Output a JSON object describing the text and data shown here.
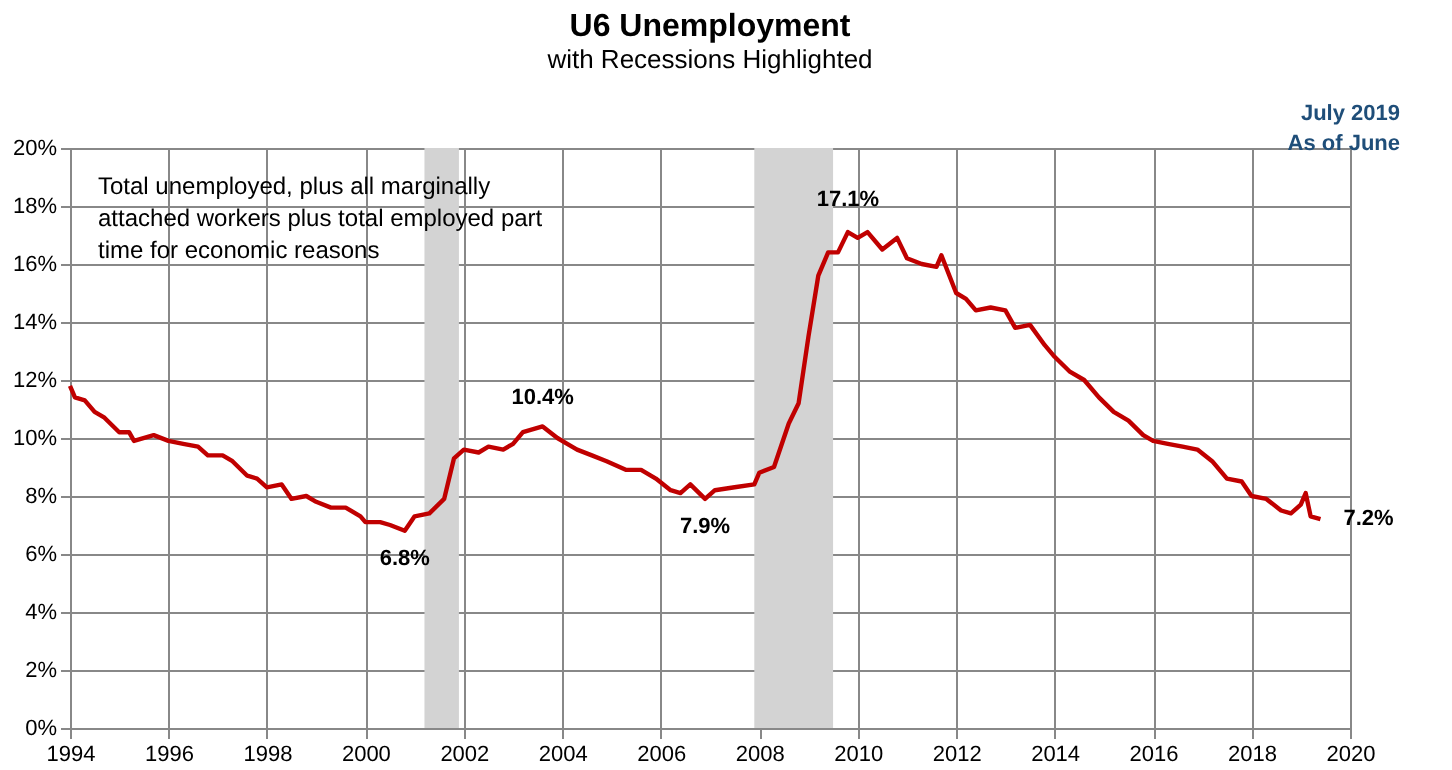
{
  "chart_data": {
    "type": "line",
    "title": "U6 Unemployment",
    "subtitle": "with Recessions Highlighted",
    "x": [
      1994.0,
      1994.1,
      1994.3,
      1994.5,
      1994.7,
      1995.0,
      1995.2,
      1995.3,
      1995.7,
      1996.0,
      1996.3,
      1996.6,
      1996.8,
      1997.1,
      1997.3,
      1997.6,
      1997.8,
      1998.0,
      1998.3,
      1998.5,
      1998.8,
      1999.0,
      1999.3,
      1999.6,
      1999.9,
      2000.0,
      2000.3,
      2000.5,
      2000.8,
      2001.0,
      2001.3,
      2001.6,
      2001.8,
      2002.0,
      2002.3,
      2002.5,
      2002.8,
      2003.0,
      2003.2,
      2003.6,
      2003.9,
      2004.1,
      2004.3,
      2004.6,
      2004.9,
      2005.3,
      2005.6,
      2005.9,
      2006.2,
      2006.4,
      2006.6,
      2006.9,
      2007.1,
      2007.5,
      2007.9,
      2008.0,
      2008.3,
      2008.6,
      2008.8,
      2009.0,
      2009.2,
      2009.4,
      2009.6,
      2009.8,
      2010.0,
      2010.2,
      2010.5,
      2010.8,
      2011.0,
      2011.3,
      2011.6,
      2011.7,
      2012.0,
      2012.2,
      2012.4,
      2012.7,
      2013.0,
      2013.2,
      2013.5,
      2013.8,
      2014.0,
      2014.3,
      2014.6,
      2014.9,
      2015.2,
      2015.5,
      2015.8,
      2016.0,
      2016.3,
      2016.6,
      2016.9,
      2017.2,
      2017.5,
      2017.8,
      2018.0,
      2018.3,
      2018.6,
      2018.8,
      2019.0,
      2019.1,
      2019.2,
      2019.4
    ],
    "series": [
      {
        "color": "#c00000",
        "values": [
          11.8,
          11.4,
          11.3,
          10.9,
          10.7,
          10.2,
          10.2,
          9.9,
          10.1,
          9.9,
          9.8,
          9.7,
          9.4,
          9.4,
          9.2,
          8.7,
          8.6,
          8.3,
          8.4,
          7.9,
          8.0,
          7.8,
          7.6,
          7.6,
          7.3,
          7.1,
          7.1,
          7.0,
          6.8,
          7.3,
          7.4,
          7.9,
          9.3,
          9.6,
          9.5,
          9.7,
          9.6,
          9.8,
          10.2,
          10.4,
          10.0,
          9.8,
          9.6,
          9.4,
          9.2,
          8.9,
          8.9,
          8.6,
          8.2,
          8.1,
          8.4,
          7.9,
          8.2,
          8.3,
          8.4,
          8.8,
          9.0,
          10.5,
          11.2,
          13.5,
          15.6,
          16.4,
          16.4,
          17.1,
          16.9,
          17.1,
          16.5,
          16.9,
          16.2,
          16.0,
          15.9,
          16.3,
          15.0,
          14.8,
          14.4,
          14.5,
          14.4,
          13.8,
          13.9,
          13.2,
          12.8,
          12.3,
          12.0,
          11.4,
          10.9,
          10.6,
          10.1,
          9.9,
          9.8,
          9.7,
          9.6,
          9.2,
          8.6,
          8.5,
          8.0,
          7.9,
          7.5,
          7.4,
          7.7,
          8.1,
          7.3,
          7.2
        ]
      }
    ],
    "xlim": [
      1994,
      2020
    ],
    "xticks": [
      1994,
      1996,
      1998,
      2000,
      2002,
      2004,
      2006,
      2008,
      2010,
      2012,
      2014,
      2016,
      2018,
      2020
    ],
    "ylim": [
      0,
      20
    ],
    "yticks": [
      {
        "value": 0,
        "label": "0%"
      },
      {
        "value": 2,
        "label": "2%"
      },
      {
        "value": 4,
        "label": "4%"
      },
      {
        "value": 6,
        "label": "6%"
      },
      {
        "value": 8,
        "label": "8%"
      },
      {
        "value": 10,
        "label": "10%"
      },
      {
        "value": 12,
        "label": "12%"
      },
      {
        "value": 14,
        "label": "14%"
      },
      {
        "value": 16,
        "label": "16%"
      },
      {
        "value": 18,
        "label": "18%"
      },
      {
        "value": 20,
        "label": "20%"
      }
    ],
    "bands": [
      {
        "axis": "x",
        "from": 2001.2,
        "to": 2001.9,
        "color": "#d3d3d3"
      },
      {
        "axis": "x",
        "from": 2007.9,
        "to": 2009.5,
        "color": "#d3d3d3"
      }
    ],
    "annotations": [
      "Total unemployed, plus all marginally attached workers plus total employed part time for economic reasons",
      "July 2019",
      "As of June",
      {
        "text": "6.8%",
        "x": 2000.8,
        "y": 6.8
      },
      {
        "text": "10.4%",
        "x": 2003.6,
        "y": 10.4
      },
      {
        "text": "7.9%",
        "x": 2006.9,
        "y": 7.9
      },
      {
        "text": "17.1%",
        "x": 2009.8,
        "y": 17.1
      },
      {
        "text": "7.2%",
        "x": 2019.4,
        "y": 7.2
      }
    ],
    "grid": true,
    "marker": "none",
    "line_style": "solid"
  }
}
